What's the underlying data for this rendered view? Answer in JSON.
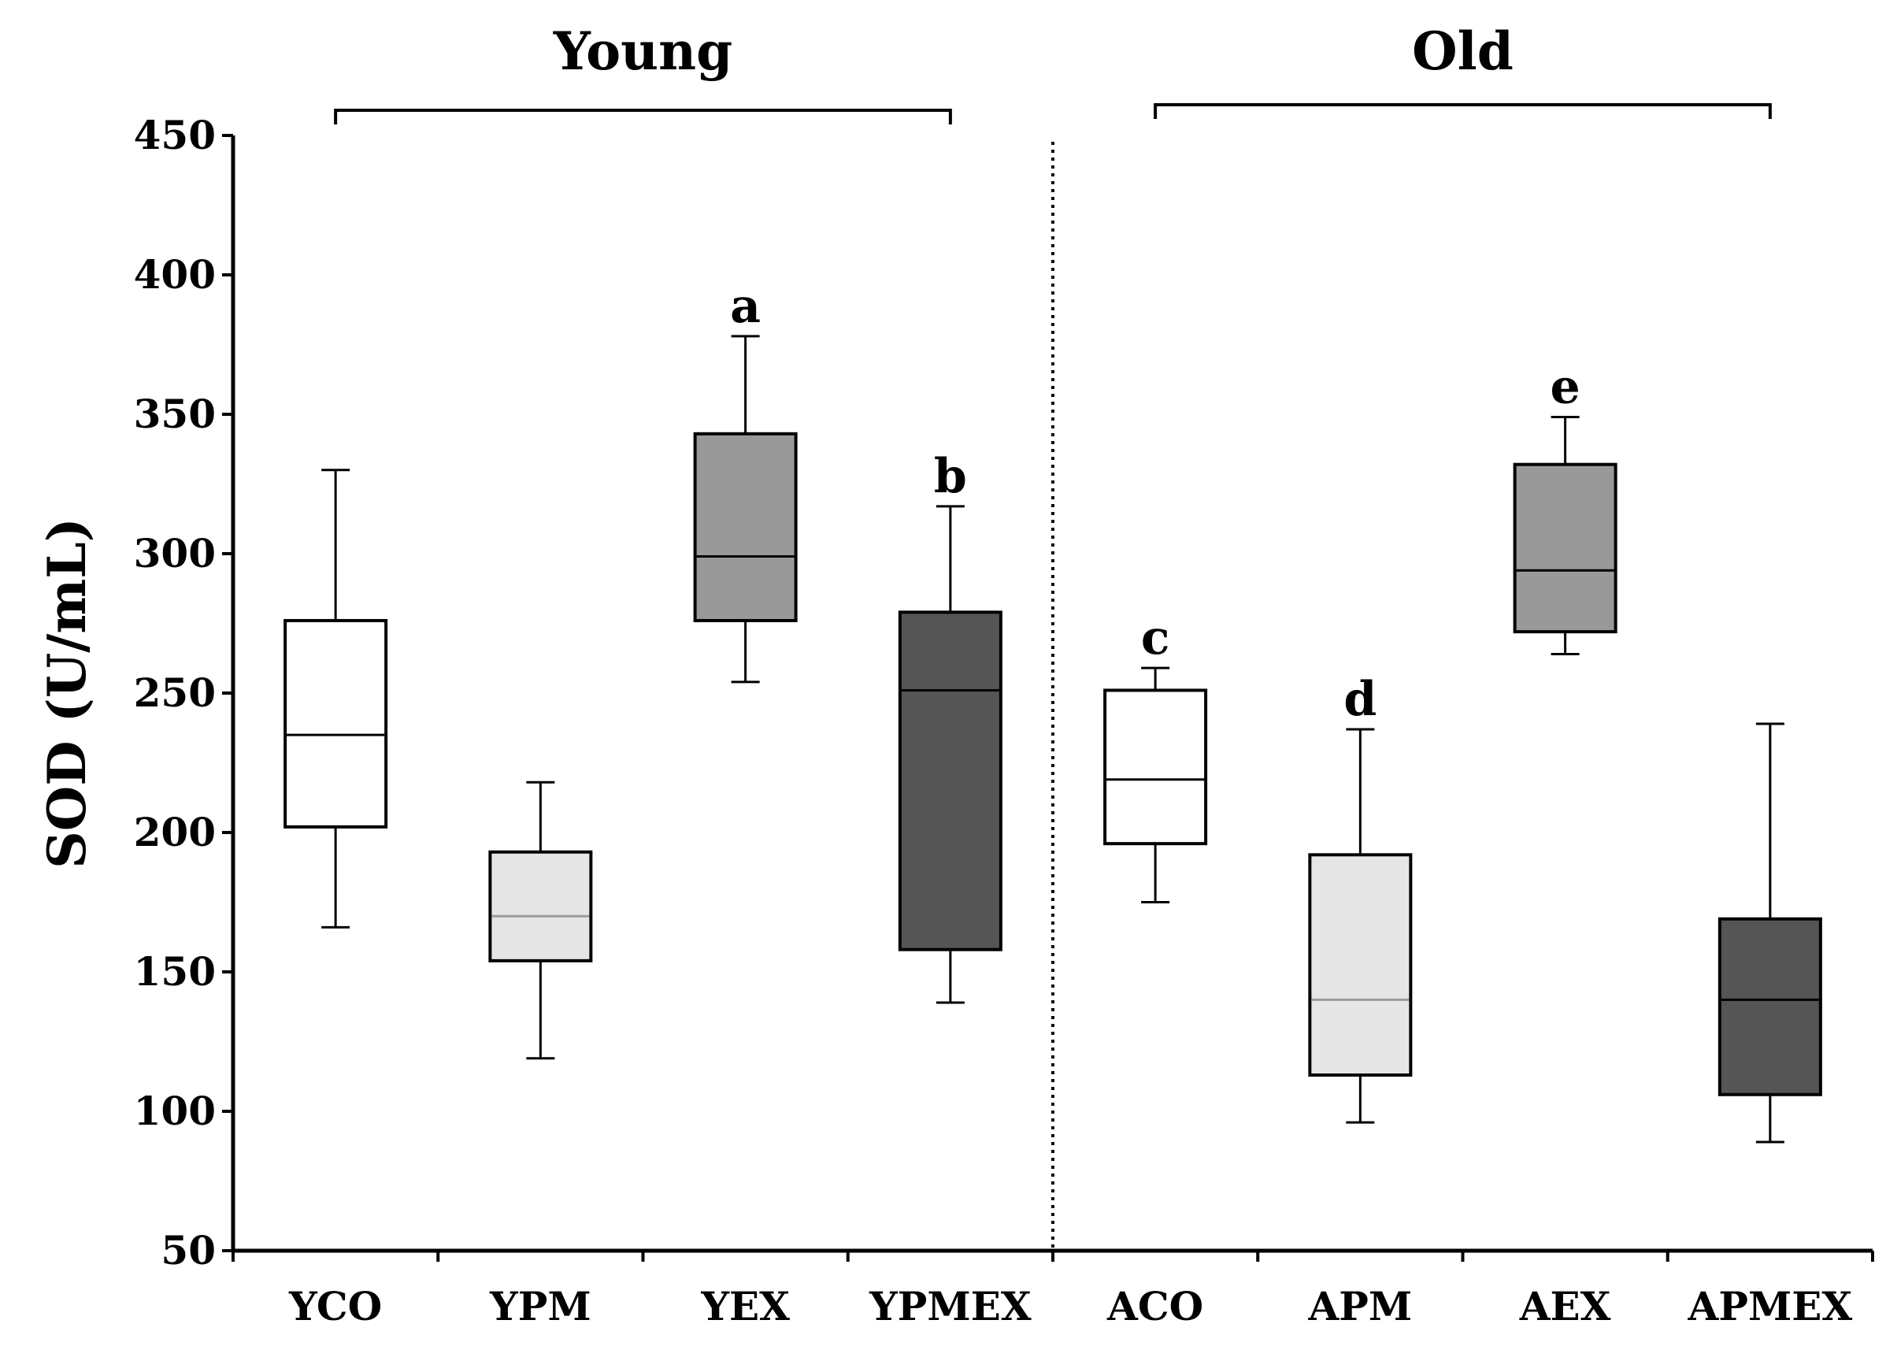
{
  "chart_data": {
    "type": "boxplot",
    "ylabel": "SOD (U/mL)",
    "xlabel": "",
    "ylim": [
      50,
      450
    ],
    "yticks": [
      50,
      100,
      150,
      200,
      250,
      300,
      350,
      400,
      450
    ],
    "groups": [
      {
        "label": "Young",
        "categories": [
          "YCO",
          "YPM",
          "YEX",
          "YPMEX"
        ]
      },
      {
        "label": "Old",
        "categories": [
          "ACO",
          "APM",
          "AEX",
          "APMEX"
        ]
      }
    ],
    "boxes": [
      {
        "category": "YCO",
        "min": 166,
        "q1": 202,
        "median": 235,
        "q3": 276,
        "max": 330,
        "fill": "#ffffff",
        "median_color": "#000000",
        "letter": ""
      },
      {
        "category": "YPM",
        "min": 119,
        "q1": 154,
        "median": 170,
        "q3": 193,
        "max": 218,
        "fill": "#e6e6e6",
        "median_color": "#9a9a9a",
        "letter": ""
      },
      {
        "category": "YEX",
        "min": 254,
        "q1": 276,
        "median": 299,
        "q3": 343,
        "max": 378,
        "fill": "#999999",
        "median_color": "#000000",
        "letter": "a"
      },
      {
        "category": "YPMEX",
        "min": 139,
        "q1": 158,
        "median": 251,
        "q3": 279,
        "max": 317,
        "fill": "#555555",
        "median_color": "#000000",
        "letter": "b"
      },
      {
        "category": "ACO",
        "min": 175,
        "q1": 196,
        "median": 219,
        "q3": 251,
        "max": 259,
        "fill": "#ffffff",
        "median_color": "#000000",
        "letter": "c"
      },
      {
        "category": "APM",
        "min": 96,
        "q1": 113,
        "median": 140,
        "q3": 192,
        "max": 237,
        "fill": "#e6e6e6",
        "median_color": "#9a9a9a",
        "letter": "d"
      },
      {
        "category": "AEX",
        "min": 264,
        "q1": 272,
        "median": 294,
        "q3": 332,
        "max": 349,
        "fill": "#999999",
        "median_color": "#000000",
        "letter": "e"
      },
      {
        "category": "APMEX",
        "min": 89,
        "q1": 106,
        "median": 140,
        "q3": 169,
        "max": 239,
        "fill": "#555555",
        "median_color": "#000000",
        "letter": ""
      }
    ]
  }
}
